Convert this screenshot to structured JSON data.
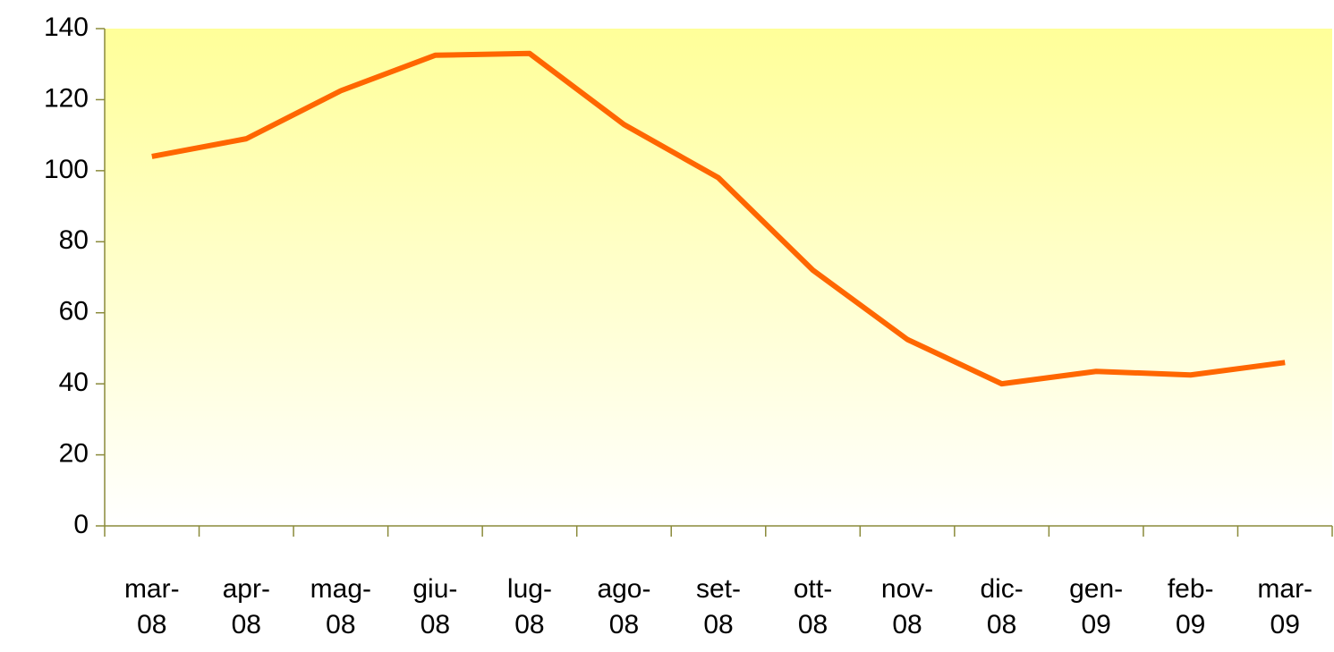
{
  "chart_data": {
    "type": "line",
    "categories": [
      "mar-08",
      "apr-08",
      "mag-08",
      "giu-08",
      "lug-08",
      "ago-08",
      "set-08",
      "ott-08",
      "nov-08",
      "dic-08",
      "gen-09",
      "feb-09",
      "mar-09"
    ],
    "values": [
      104,
      109,
      122.5,
      132.5,
      133,
      113,
      98,
      72,
      52.5,
      40,
      43.5,
      42.5,
      46
    ],
    "color": "#ff6600",
    "ylim": [
      0,
      140
    ],
    "yticks": [
      0,
      20,
      40,
      60,
      80,
      100,
      120,
      140
    ]
  }
}
